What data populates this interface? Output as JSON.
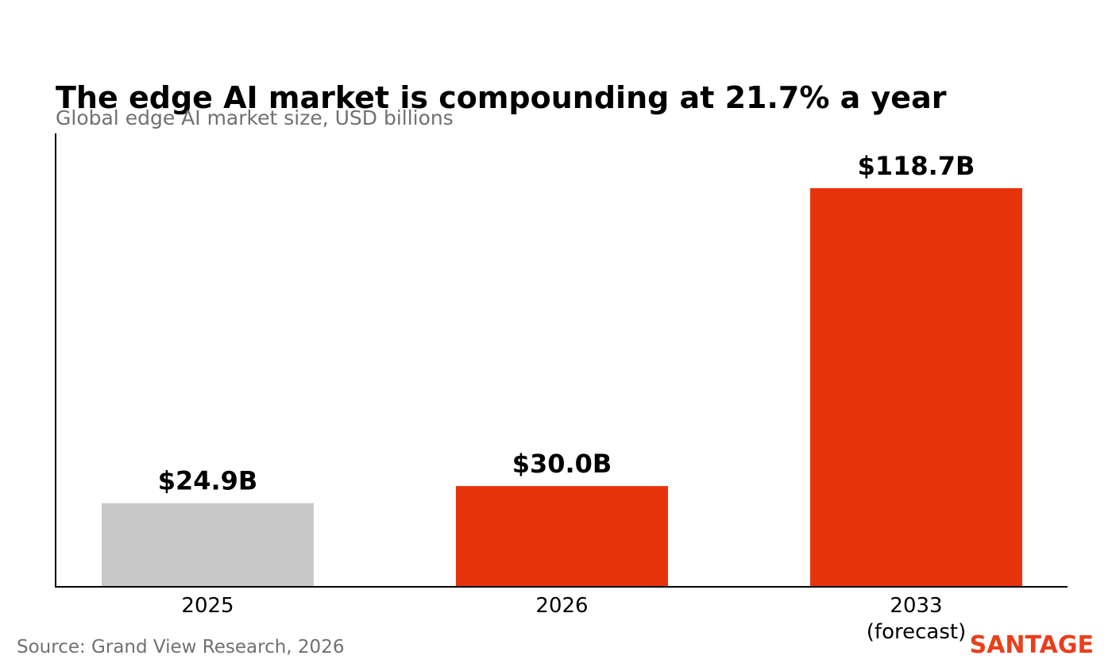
{
  "chart_data": {
    "type": "bar",
    "title": "The edge AI market is compounding at 21.7% a year",
    "subtitle": "Global edge AI market size, USD billions",
    "categories": [
      [
        "2025"
      ],
      [
        "2026"
      ],
      [
        "2033",
        "(forecast)"
      ]
    ],
    "values": [
      24.9,
      30.0,
      118.7
    ],
    "value_labels": [
      "$24.9B",
      "$30.0B",
      "$118.7B"
    ],
    "bar_colors": [
      "#c8c8c8",
      "#e8340c",
      "#e8340c"
    ],
    "ylim": [
      0,
      135
    ],
    "grid": false,
    "xlabel": "",
    "ylabel": ""
  },
  "source": "Source: Grand View Research, 2026",
  "brand": {
    "name": "SANTAGE",
    "color": "#e8401c"
  }
}
